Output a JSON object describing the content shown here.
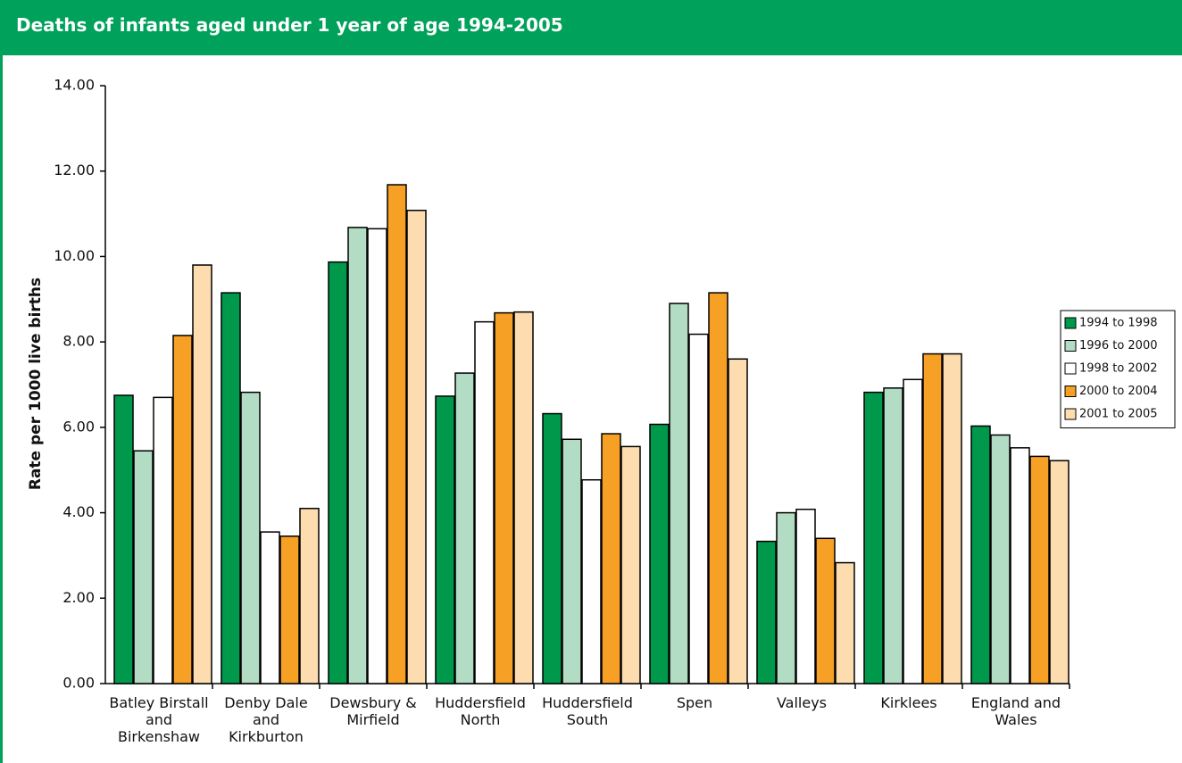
{
  "chart_data": {
    "type": "bar",
    "title": "Deaths of infants aged under 1 year of age 1994-2005",
    "y_label": "Rate per 1000 live births",
    "categories": [
      "Batley Birstall\nand\nBirkenshaw",
      "Denby Dale\nand\nKirkburton",
      "Dewsbury &\nMirfield",
      "Huddersfield\nNorth",
      "Huddersfield\nSouth",
      "Spen",
      "Valleys",
      "Kirklees",
      "England and\nWales"
    ],
    "series": [
      {
        "name": "1994 to 1998",
        "color": "#00994c",
        "values": [
          6.75,
          9.15,
          9.87,
          6.73,
          6.32,
          6.07,
          3.33,
          6.82,
          6.03
        ]
      },
      {
        "name": "1996 to 2000",
        "color": "#b3dcc4",
        "values": [
          5.45,
          6.82,
          10.68,
          7.27,
          5.72,
          8.9,
          4.0,
          6.92,
          5.82
        ]
      },
      {
        "name": "1998 to 2002",
        "color": "#ffffff",
        "values": [
          6.7,
          3.55,
          10.65,
          8.47,
          4.77,
          8.18,
          4.08,
          7.12,
          5.52
        ]
      },
      {
        "name": "2000 to 2004",
        "color": "#f7a026",
        "values": [
          8.15,
          3.45,
          11.68,
          8.68,
          5.85,
          9.15,
          3.4,
          7.72,
          5.32
        ]
      },
      {
        "name": "2001 to 2005",
        "color": "#fddcb0",
        "values": [
          9.8,
          4.1,
          11.08,
          8.7,
          5.55,
          7.6,
          2.83,
          7.72,
          5.22
        ]
      }
    ],
    "ylim": [
      0,
      14
    ],
    "yticks": [
      {
        "value": 0,
        "label": "0.00"
      },
      {
        "value": 2,
        "label": "2.00"
      },
      {
        "value": 4,
        "label": "4.00"
      },
      {
        "value": 6,
        "label": "6.00"
      },
      {
        "value": 8,
        "label": "8.00"
      },
      {
        "value": 10,
        "label": "10.00"
      },
      {
        "value": 12,
        "label": "12.00"
      },
      {
        "value": 14,
        "label": "14.00"
      }
    ],
    "grid": false,
    "legend": "right"
  }
}
